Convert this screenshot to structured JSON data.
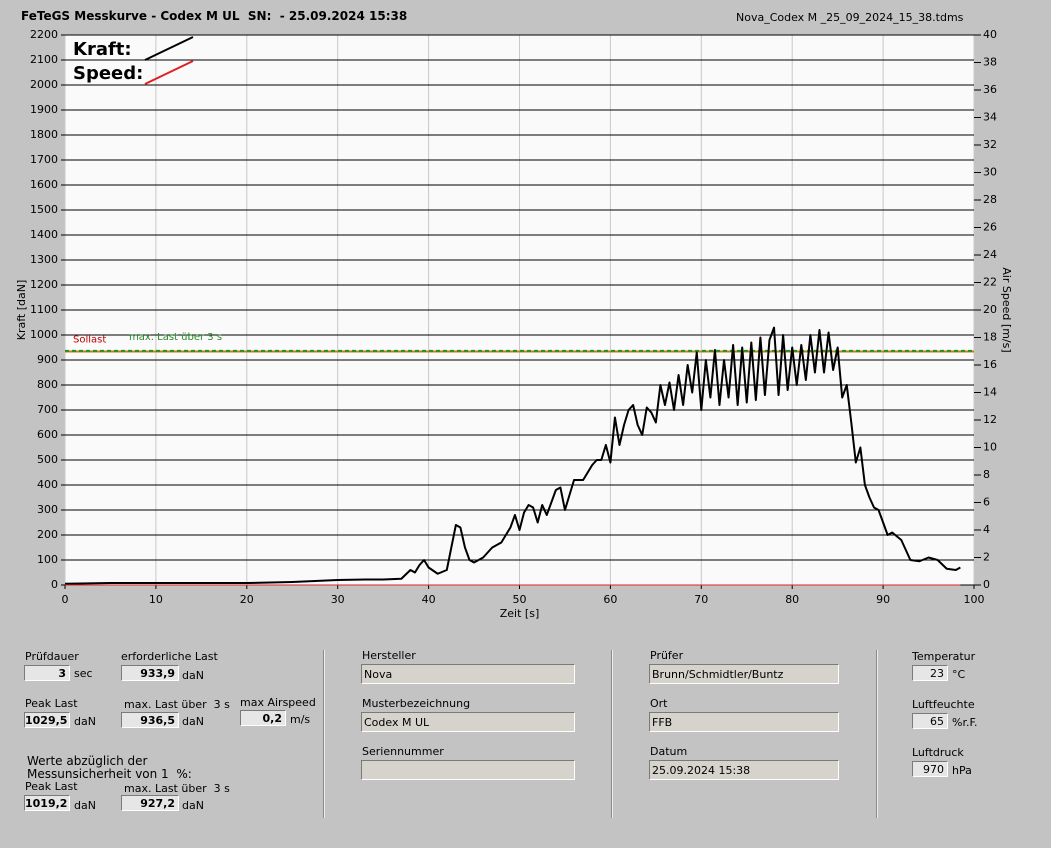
{
  "header": {
    "title": "FeTeGS Messkurve - Codex M UL  SN:  - 25.09.2024 15:38",
    "file": "Nova_Codex M _25_09_2024_15_38.tdms"
  },
  "chart_data": {
    "type": "line",
    "x_label": "Zeit [s]",
    "y_label": "Kraft [daN]",
    "y2_label": "Air Speed [m/s]",
    "xlim": [
      0,
      100
    ],
    "xticks": [
      0,
      10,
      20,
      30,
      40,
      50,
      60,
      70,
      80,
      90,
      100
    ],
    "ylim": [
      0,
      2200
    ],
    "yticks": [
      0,
      100,
      200,
      300,
      400,
      500,
      600,
      700,
      800,
      900,
      1000,
      1100,
      1200,
      1300,
      1400,
      1500,
      1600,
      1700,
      1800,
      1900,
      2000,
      2100,
      2200
    ],
    "y2lim": [
      0,
      40
    ],
    "y2ticks": [
      0,
      2,
      4,
      6,
      8,
      10,
      12,
      14,
      16,
      18,
      20,
      22,
      24,
      26,
      28,
      30,
      32,
      34,
      36,
      38,
      40
    ],
    "grid": true,
    "series": [
      {
        "name": "Kraft:",
        "color": "#000000",
        "x": [
          0,
          5,
          10,
          15,
          20,
          25,
          30,
          33,
          35,
          37,
          38,
          38.5,
          39,
          39.5,
          40,
          41,
          42,
          42.5,
          43,
          43.5,
          44,
          44.5,
          45,
          46,
          47,
          48,
          49,
          49.5,
          50,
          50.5,
          51,
          51.5,
          52,
          52.5,
          53,
          54,
          54.5,
          55,
          56,
          57,
          58,
          58.5,
          59,
          59.5,
          60,
          60.5,
          61,
          61.5,
          62,
          62.5,
          63,
          63.5,
          64,
          64.5,
          65,
          65.5,
          66,
          66.5,
          67,
          67.5,
          68,
          68.5,
          69,
          69.5,
          70,
          70.5,
          71,
          71.5,
          72,
          72.5,
          73,
          73.5,
          74,
          74.5,
          75,
          75.5,
          76,
          76.5,
          77,
          77.5,
          78,
          78.5,
          79,
          79.5,
          80,
          80.5,
          81,
          81.5,
          82,
          82.5,
          83,
          83.5,
          84,
          84.5,
          85,
          85.5,
          86,
          86.5,
          87,
          87.5,
          88,
          88.5,
          89,
          89.5,
          90,
          90.5,
          91,
          92,
          93,
          94,
          95,
          96,
          97,
          98,
          98.5
        ],
        "values": [
          5,
          8,
          8,
          8,
          8,
          12,
          20,
          22,
          22,
          25,
          60,
          50,
          80,
          100,
          70,
          45,
          60,
          150,
          240,
          230,
          150,
          100,
          90,
          110,
          150,
          170,
          230,
          280,
          220,
          290,
          320,
          310,
          250,
          320,
          280,
          380,
          390,
          300,
          420,
          420,
          480,
          500,
          500,
          560,
          490,
          670,
          560,
          640,
          700,
          720,
          640,
          600,
          710,
          690,
          650,
          800,
          720,
          810,
          700,
          840,
          720,
          880,
          770,
          930,
          700,
          900,
          750,
          940,
          720,
          900,
          750,
          960,
          720,
          950,
          730,
          970,
          740,
          990,
          760,
          980,
          1029.5,
          760,
          1000,
          780,
          950,
          800,
          960,
          820,
          1000,
          850,
          1020,
          850,
          1010,
          860,
          950,
          750,
          800,
          650,
          490,
          550,
          400,
          350,
          310,
          300,
          250,
          200,
          210,
          180,
          100,
          95,
          110,
          100,
          65,
          60,
          70
        ]
      },
      {
        "name": "Speed:",
        "color": "#e02020",
        "axis": "y2",
        "x": [
          0,
          98.5
        ],
        "values": [
          0,
          0
        ]
      }
    ],
    "reference_lines": [
      {
        "name": "Sollast",
        "value": 933.9,
        "color": "#b8860b"
      },
      {
        "name": "max. Last über  3 s",
        "value": 936.5,
        "color": "#2a8a2a",
        "dashed": true
      }
    ]
  },
  "form": {
    "pruefdauer": {
      "label": "Prüfdauer",
      "value": "3",
      "unit": "sec"
    },
    "erf_last": {
      "label": "erforderliche Last",
      "value": "933,9",
      "unit": "daN"
    },
    "peak": {
      "label": "Peak Last",
      "value": "1029,5",
      "unit": "daN"
    },
    "max3": {
      "label": "max. Last über  3 s",
      "value": "936,5",
      "unit": "daN"
    },
    "airspeed": {
      "label": "max Airspeed",
      "value": "0,2",
      "unit": "m/s"
    },
    "note": [
      "Werte abzüglich der",
      "Messunsicherheit von 1  %:"
    ],
    "peak_red": {
      "label": "Peak Last",
      "value": "1019,2",
      "unit": "daN"
    },
    "max3_red": {
      "label": "max. Last über  3 s",
      "value": "927,2",
      "unit": "daN"
    },
    "hersteller": {
      "label": "Hersteller",
      "value": "Nova"
    },
    "muster": {
      "label": "Musterbezeichnung",
      "value": "Codex M UL"
    },
    "serien": {
      "label": "Seriennummer"
    },
    "pruefer": {
      "label": "Prüfer",
      "value": "Brunn/Schmidtler/Buntz"
    },
    "ort": {
      "label": "Ort",
      "value": "FFB"
    },
    "datum": {
      "label": "Datum",
      "value": "25.09.2024 15:38"
    },
    "temp": {
      "label": "Temperatur",
      "value": "23",
      "unit": "°C"
    },
    "feuchte": {
      "label": "Luftfeuchte",
      "value": "65",
      "unit": "%r.F."
    },
    "druck": {
      "label": "Luftdruck",
      "value": "970",
      "unit": "hPa"
    }
  }
}
